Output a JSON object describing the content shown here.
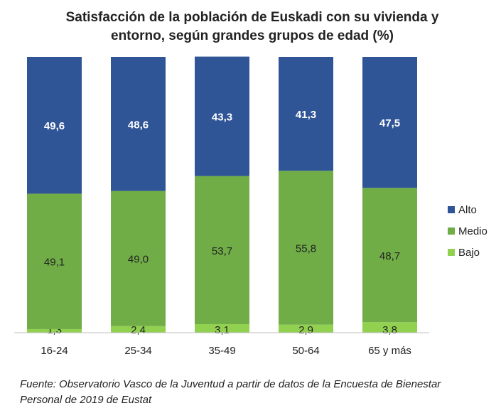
{
  "chart_data": {
    "type": "bar",
    "stacked": true,
    "title": "Satisfacción de la población de Euskadi con su vivienda y entorno, según grandes grupos de edad (%)",
    "title_lines": [
      "Satisfacción de la población de Euskadi con su vivienda y",
      "entorno, según grandes grupos de edad (%)"
    ],
    "categories": [
      "16-24",
      "25-34",
      "35-49",
      "50-64",
      "65 y más"
    ],
    "series": [
      {
        "name": "Bajo",
        "color": "#92D050",
        "values": [
          1.3,
          2.4,
          3.1,
          2.9,
          3.8
        ],
        "labels": [
          "1,3",
          "2,4",
          "3,1",
          "2,9",
          "3,8"
        ],
        "label_color": "#222222"
      },
      {
        "name": "Medio",
        "color": "#70AD47",
        "values": [
          49.1,
          49.0,
          53.7,
          55.8,
          48.7
        ],
        "labels": [
          "49,1",
          "49,0",
          "53,7",
          "55,8",
          "48,7"
        ],
        "label_color": "#222222"
      },
      {
        "name": "Alto",
        "color": "#2F5597",
        "values": [
          49.6,
          48.6,
          43.3,
          41.3,
          47.5
        ],
        "labels": [
          "49,6",
          "48,6",
          "43,3",
          "41,3",
          "47,5"
        ],
        "label_color": "#ffffff"
      }
    ],
    "legend": [
      "Alto",
      "Medio",
      "Bajo"
    ],
    "legend_placement": "right",
    "ylim": [
      0,
      100
    ],
    "grid": false,
    "y_axis_visible": false
  },
  "source": {
    "line1": "Fuente: Observatorio Vasco de la Juventud a partir de datos de la Encuesta de Bienestar",
    "line2": "Personal de 2019 de Eustat"
  }
}
